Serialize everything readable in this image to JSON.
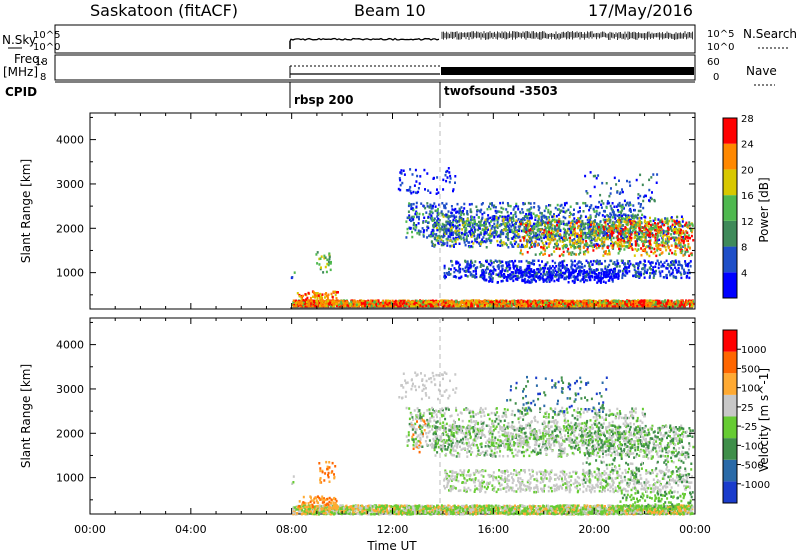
{
  "header": {
    "station": "Saskatoon (fitACF)",
    "beam": "Beam 10",
    "date": "17/May/2016"
  },
  "labels": {
    "nsky": "N.Sky",
    "freq": "Freq.",
    "mhz": "[MHz]",
    "cpid": "CPID",
    "nsearch": "N.Search",
    "nave": "Nave"
  },
  "ticks": {
    "left_top": [
      "10^5",
      "10^0"
    ],
    "left_mid": [
      "18",
      "8"
    ],
    "right_top": [
      "10^5",
      "10^0"
    ],
    "right_mid": [
      "60",
      "0"
    ]
  },
  "cpid": {
    "first": "rbsp 200",
    "second": "twofsound -3503"
  },
  "chart_data": [
    {
      "type": "heatmap",
      "title": "",
      "ylabel": "Slant Range [km]",
      "xlabel": "",
      "yticks": [
        "1000",
        "2000",
        "3000",
        "4000"
      ],
      "ylim": [
        180,
        4600
      ],
      "colorbar_label": "Power [dB]",
      "colorbar_ticks": [
        "4",
        "8",
        "12",
        "16",
        "20",
        "24",
        "28"
      ],
      "colorbar_colors": [
        "#0000ff",
        "#1f4fc8",
        "#3f8a5a",
        "#4fb84f",
        "#d8c800",
        "#ff8800",
        "#ff0000"
      ]
    },
    {
      "type": "heatmap",
      "title": "",
      "ylabel": "Slant Range [km]",
      "xlabel": "Time UT",
      "xticks": [
        "00:00",
        "04:00",
        "08:00",
        "12:00",
        "16:00",
        "20:00",
        "00:00"
      ],
      "yticks": [
        "1000",
        "2000",
        "3000",
        "4000"
      ],
      "ylim": [
        180,
        4600
      ],
      "colorbar_label": "Velocity [m s^-1]",
      "colorbar_ticks": [
        "1000",
        "500",
        "100",
        "25",
        "-25",
        "-100",
        "-500",
        "-1000"
      ],
      "colorbar_colors": [
        "#1a3ccc",
        "#2a6aa8",
        "#3f8f4a",
        "#66cc33",
        "#c8c8c8",
        "#ffaa33",
        "#ff6600",
        "#ff0000"
      ]
    }
  ]
}
